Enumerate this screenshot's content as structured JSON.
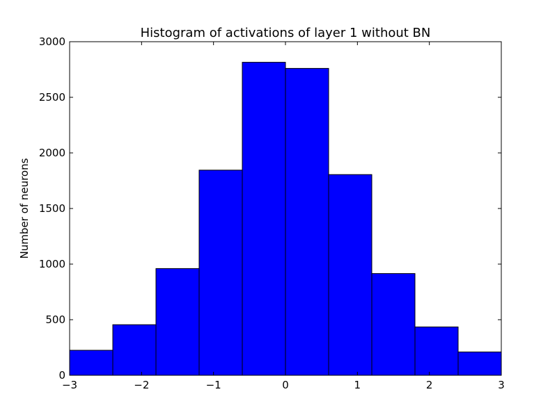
{
  "chart_data": {
    "type": "bar",
    "title": "Histogram of activations of layer 1  without BN",
    "xlabel": "",
    "ylabel": "Number of neurons",
    "xlim": [
      -3,
      3
    ],
    "ylim": [
      0,
      3000
    ],
    "bin_edges": [
      -3,
      -2.4,
      -1.8,
      -1.2,
      -0.6,
      0,
      0.6,
      1.2,
      1.8,
      2.4,
      3
    ],
    "values": [
      225,
      455,
      960,
      1845,
      2815,
      2760,
      1805,
      915,
      435,
      210
    ],
    "x_ticks": [
      -3,
      -2,
      -1,
      0,
      1,
      2,
      3
    ],
    "x_tick_labels": [
      "−3",
      "−2",
      "−1",
      "0",
      "1",
      "2",
      "3"
    ],
    "y_ticks": [
      0,
      500,
      1000,
      1500,
      2000,
      2500,
      3000
    ],
    "y_tick_labels": [
      "0",
      "500",
      "1000",
      "1500",
      "2000",
      "2500",
      "3000"
    ],
    "bar_color": "#0000ff",
    "edge_color": "#000000",
    "grid": false,
    "legend": "none"
  }
}
